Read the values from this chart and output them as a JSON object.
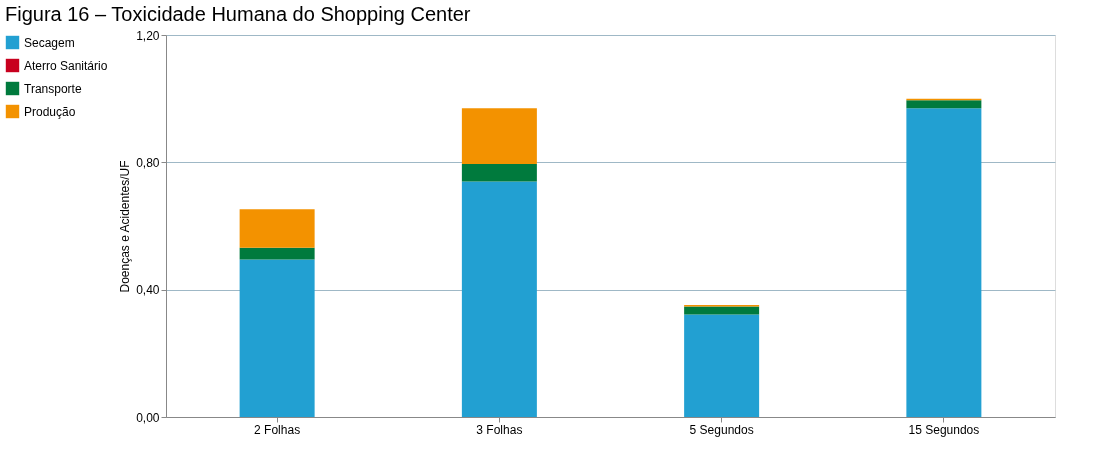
{
  "chart_data": {
    "type": "bar",
    "title": "Figura 16 – Toxicidade Humana do Shopping Center",
    "ylabel": "Doenças e Acidentes/UF",
    "categories": [
      "2 Folhas",
      "3 Folhas",
      "5 Segundos",
      "15 Segundos"
    ],
    "stacked": true,
    "series": [
      {
        "name": "Secagem",
        "color": "#22a0d2",
        "values": [
          0.495,
          0.74,
          0.322,
          0.97
        ]
      },
      {
        "name": "Aterro Sanitário",
        "color": "#c8001e",
        "values": [
          0,
          0,
          0,
          0
        ]
      },
      {
        "name": "Transporte",
        "color": "#007a3d",
        "values": [
          0.037,
          0.055,
          0.025,
          0.025
        ]
      },
      {
        "name": "Produção",
        "color": "#f39200",
        "values": [
          0.121,
          0.175,
          0.005,
          0.005
        ]
      }
    ],
    "ylim": [
      0,
      1.2
    ],
    "yticks": [
      {
        "value": 0,
        "label": "0,00"
      },
      {
        "value": 0.4,
        "label": "0,40"
      },
      {
        "value": 0.8,
        "label": "0,80"
      },
      {
        "value": 1.2,
        "label": "1,20"
      }
    ],
    "grid": "y",
    "legend": "left"
  }
}
